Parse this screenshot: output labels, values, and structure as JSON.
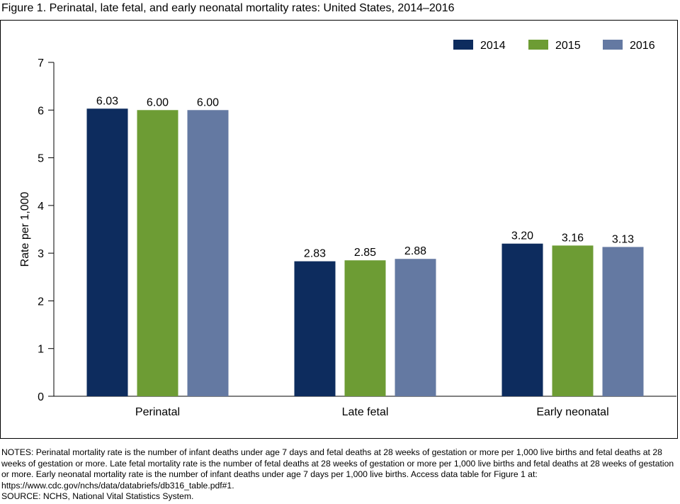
{
  "figure_title": "Figure 1. Perinatal, late fetal, and early neonatal mortality rates: United States, 2014–2016",
  "notes": "NOTES: Perinatal mortality rate is the number of infant deaths under age 7 days and fetal deaths at 28 weeks of gestation or more per 1,000 live births and fetal deaths at 28 weeks of gestation or more. Late fetal mortality rate is the number of fetal deaths at 28 weeks of gestation or more per 1,000 live births and fetal deaths at 28 weeks of gestation or more. Early neonatal mortality rate is the number of infant deaths under age 7 days per 1,000 live births. Access data table for Figure 1 at: https://www.cdc.gov/nchs/data/databriefs/db316_table.pdf#1.",
  "source": "SOURCE: NCHS, National Vital Statistics System.",
  "chart_data": {
    "type": "bar",
    "title": "Figure 1. Perinatal, late fetal, and early neonatal mortality rates: United States, 2014–2016",
    "xlabel": "",
    "ylabel": "Rate per 1,000",
    "ylim": [
      0,
      7
    ],
    "yticks": [
      0,
      1,
      2,
      3,
      4,
      5,
      6,
      7
    ],
    "grid": false,
    "legend_position": "top-right",
    "categories": [
      "Perinatal",
      "Late fetal",
      "Early neonatal"
    ],
    "series": [
      {
        "name": "2014",
        "color": "#0d2c5e",
        "values": [
          6.03,
          2.83,
          3.2
        ],
        "labels": [
          "6.03",
          "2.83",
          "3.20"
        ]
      },
      {
        "name": "2015",
        "color": "#6d9c34",
        "values": [
          6.0,
          2.85,
          3.16
        ],
        "labels": [
          "6.00",
          "2.85",
          "3.16"
        ]
      },
      {
        "name": "2016",
        "color": "#6479a2",
        "values": [
          6.0,
          2.88,
          3.13
        ],
        "labels": [
          "6.00",
          "2.88",
          "3.13"
        ]
      }
    ]
  }
}
